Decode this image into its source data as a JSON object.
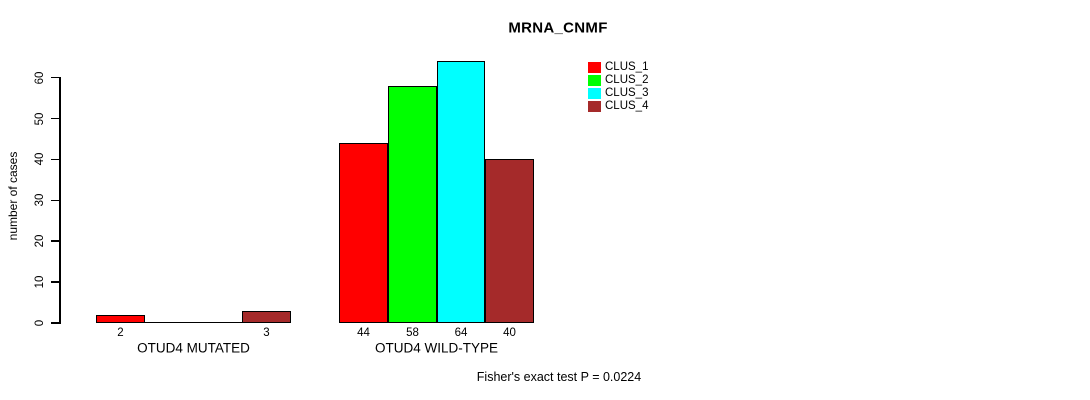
{
  "chart_data": {
    "type": "bar",
    "title": "MRNA_CNMF",
    "ylabel": "number of cases",
    "xlabel": "",
    "ylim": [
      0,
      60
    ],
    "yticks": [
      0,
      10,
      20,
      30,
      40,
      50,
      60
    ],
    "grid": false,
    "legend_position": "top-right",
    "categories": [
      "OTUD4 MUTATED",
      "OTUD4 WILD-TYPE"
    ],
    "series": [
      {
        "name": "CLUS_1",
        "color": "#ff0000",
        "values": [
          2,
          44
        ]
      },
      {
        "name": "CLUS_2",
        "color": "#00ff00",
        "values": [
          0,
          58
        ]
      },
      {
        "name": "CLUS_3",
        "color": "#00ffff",
        "values": [
          0,
          64
        ]
      },
      {
        "name": "CLUS_4",
        "color": "#a52a2a",
        "values": [
          3,
          40
        ]
      }
    ],
    "bar_value_labels": [
      [
        "2",
        "",
        "",
        "3"
      ],
      [
        "44",
        "58",
        "64",
        "40"
      ]
    ],
    "annotation": "Fisher's exact test P = 0.0224"
  }
}
